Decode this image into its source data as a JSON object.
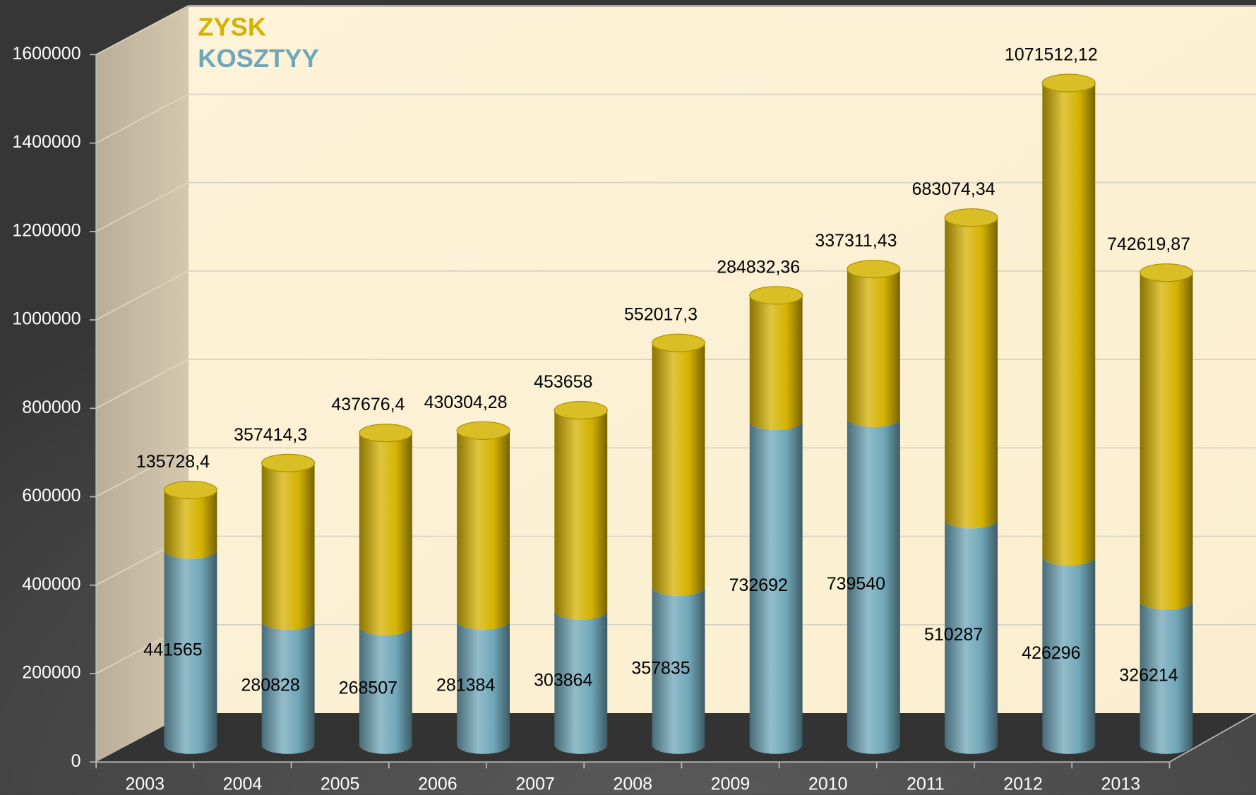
{
  "chart_data": {
    "type": "bar3d-stacked",
    "categories": [
      "2003",
      "2004",
      "2005",
      "2006",
      "2007",
      "2008",
      "2009",
      "2010",
      "2011",
      "2012",
      "2013"
    ],
    "series": [
      {
        "name": "KOSZTYY",
        "color": "#6fa6b8",
        "values": [
          441565,
          280828,
          268507,
          281384,
          303864,
          357835,
          732692,
          739540,
          510287,
          426296,
          326214
        ]
      },
      {
        "name": "ZYSK",
        "color": "#d4b200",
        "values": [
          135728.4,
          357414.3,
          437676.4,
          430304.28,
          453658,
          552017.3,
          284832.36,
          337311.43,
          683074.34,
          1071512.12,
          742619.87
        ],
        "value_labels": [
          "135728,4",
          "357414,3",
          "437676,4",
          "430304,28",
          "453658",
          "552017,3",
          "284832,36",
          "337311,43",
          "683074,34",
          "1071512,12",
          "742619,87"
        ]
      }
    ],
    "ylim": [
      0,
      1600000
    ],
    "yticks": [
      0,
      200000,
      400000,
      600000,
      800000,
      1000000,
      1200000,
      1400000,
      1600000
    ],
    "grid": true,
    "legend": "top-left"
  }
}
